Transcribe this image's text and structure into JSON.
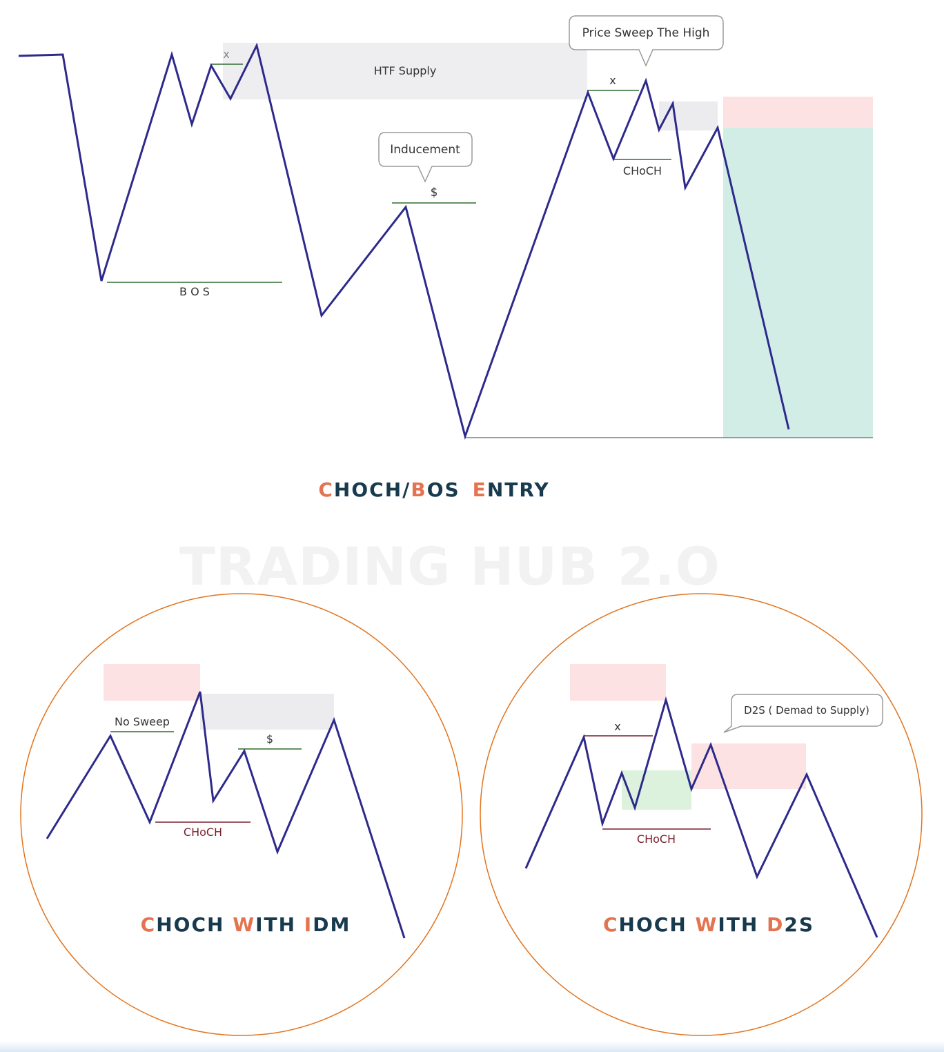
{
  "main_diagram": {
    "labels": {
      "htf_supply": "HTF Supply",
      "price_sweep": "Price Sweep The High",
      "inducement": "Inducement",
      "dollar": "$",
      "bos": "B O S",
      "choch": "CHoCH",
      "x_left": "x",
      "x_right": "x"
    },
    "title": {
      "p1": "C",
      "p2": "HOCH/",
      "p3": "B",
      "p4": "OS",
      "p5": "E",
      "p6": "NTRY"
    },
    "colors": {
      "price_line": "#2e2a8c",
      "supply_zone": "#eeeef1",
      "stop_zone": "#fde2e4",
      "target_zone": "#d1ede6",
      "level_line": "#2f6e2f",
      "accent": "#e5734f",
      "title_dark": "#173a4e"
    }
  },
  "watermark": "TRADING HUB 2.O",
  "left_panel": {
    "labels": {
      "no_sweep": "No Sweep",
      "dollar": "$",
      "choch": "CHoCH"
    },
    "title": {
      "p1": "C",
      "p2": "HOCH ",
      "p3": "W",
      "p4": "ITH ",
      "p5": "I",
      "p6": "DM"
    }
  },
  "right_panel": {
    "labels": {
      "x": "x",
      "choch": "CHoCH",
      "d2s": "D2S ( Demad to Supply)"
    },
    "title": {
      "p1": "C",
      "p2": "HOCH ",
      "p3": "W",
      "p4": "ITH ",
      "p5": "D",
      "p6": "2S"
    }
  },
  "panel_colors": {
    "circle": "#e2741e",
    "choch_line": "#7a1f2b",
    "demand_zone": "#dcf2dc"
  }
}
